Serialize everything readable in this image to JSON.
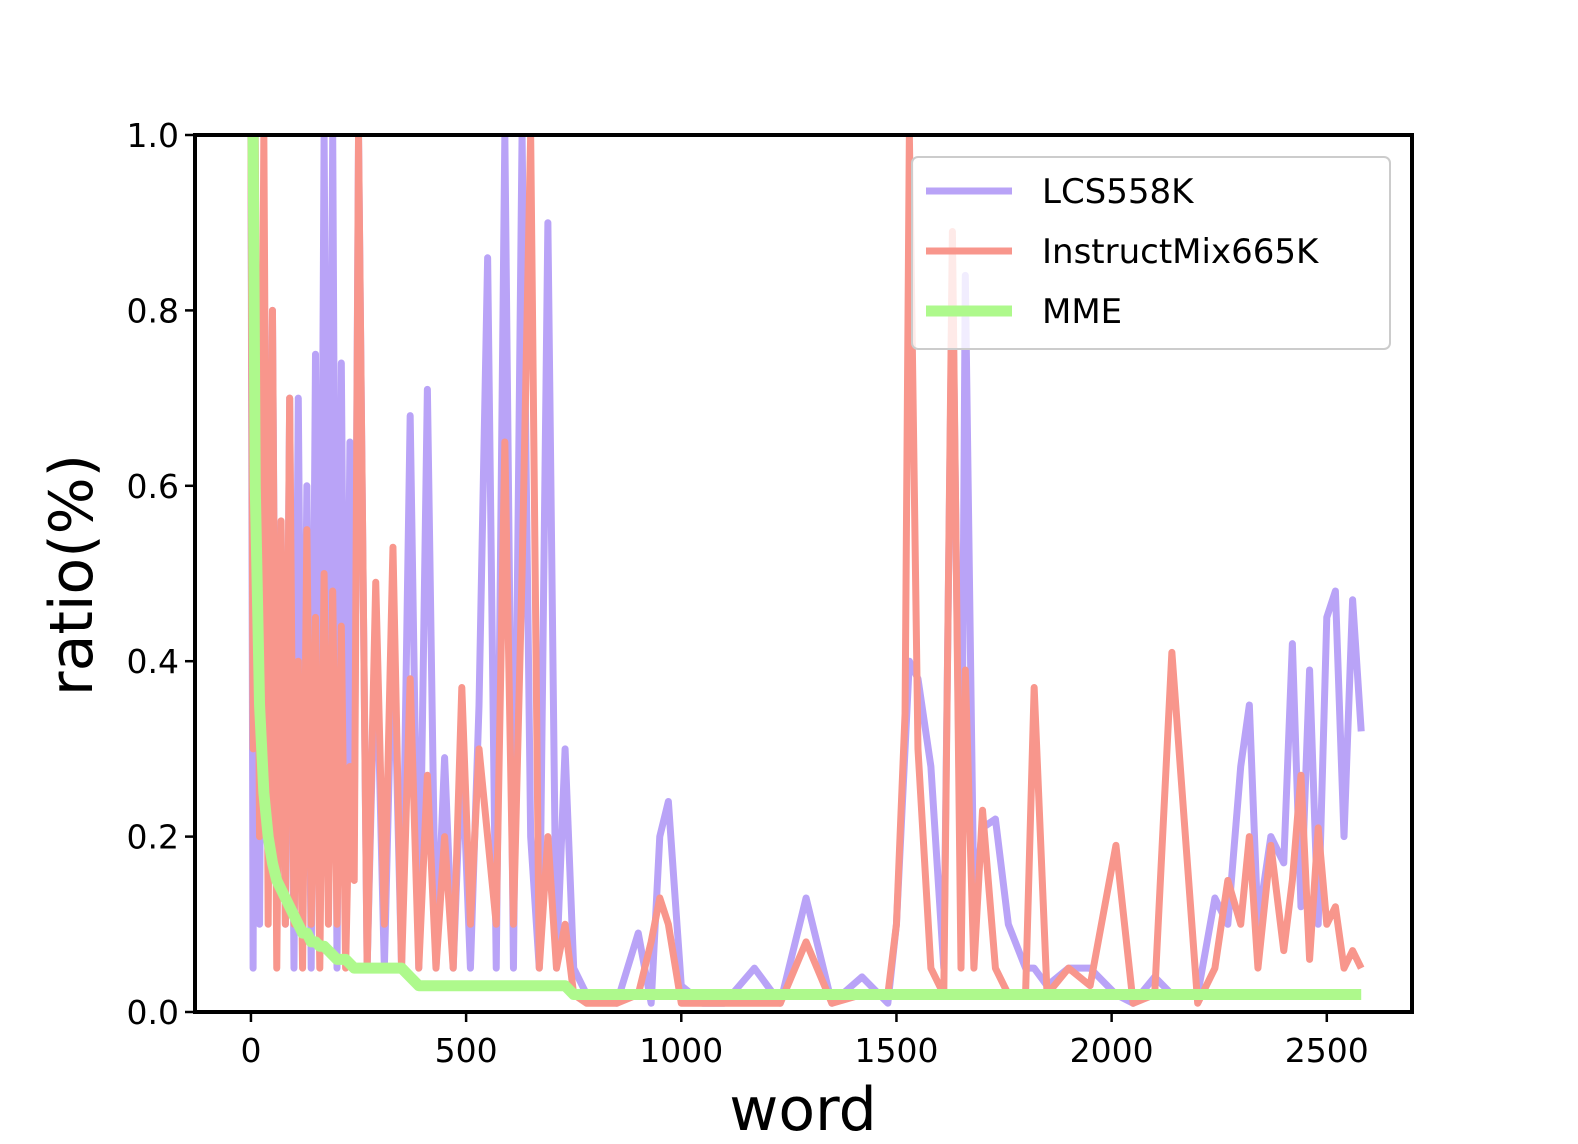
{
  "chart_data": {
    "type": "line",
    "xlabel": "word",
    "ylabel": "ratio(%)",
    "xlim": [
      -130,
      2698
    ],
    "ylim": [
      0,
      1
    ],
    "xticks": [
      0,
      500,
      1000,
      1500,
      2000,
      2500
    ],
    "yticks": [
      {
        "value": 0,
        "label": "0.0"
      },
      0.2,
      0.4,
      0.6,
      0.8,
      {
        "value": 1,
        "label": "1.0"
      }
    ],
    "legend": "upper right",
    "x": [
      0,
      5,
      10,
      20,
      30,
      40,
      50,
      60,
      70,
      80,
      90,
      100,
      110,
      120,
      130,
      140,
      150,
      160,
      170,
      180,
      190,
      200,
      210,
      220,
      230,
      240,
      250,
      270,
      290,
      310,
      330,
      350,
      370,
      390,
      410,
      430,
      450,
      470,
      490,
      510,
      530,
      550,
      570,
      590,
      610,
      630,
      650,
      670,
      690,
      710,
      730,
      750,
      780,
      810,
      850,
      900,
      930,
      950,
      970,
      1000,
      1050,
      1100,
      1170,
      1230,
      1290,
      1350,
      1420,
      1480,
      1500,
      1520,
      1530,
      1550,
      1580,
      1610,
      1630,
      1650,
      1660,
      1680,
      1700,
      1730,
      1760,
      1800,
      1820,
      1850,
      1900,
      1950,
      2010,
      2050,
      2100,
      2140,
      2200,
      2240,
      2270,
      2300,
      2320,
      2340,
      2370,
      2400,
      2420,
      2440,
      2460,
      2480,
      2500,
      2520,
      2540,
      2560,
      2580
    ],
    "series": [
      {
        "name": "LCS558K",
        "color": "#b9a3f7",
        "values": [
          1.0,
          0.05,
          0.9,
          0.1,
          0.9,
          0.2,
          0.8,
          0.1,
          0.55,
          0.1,
          0.7,
          0.05,
          0.7,
          0.1,
          0.6,
          0.05,
          0.75,
          0.1,
          1.0,
          0.2,
          1.0,
          0.05,
          0.74,
          0.1,
          0.65,
          0.2,
          1.0,
          0.05,
          0.45,
          0.05,
          0.45,
          0.05,
          0.68,
          0.05,
          0.71,
          0.05,
          0.29,
          0.05,
          0.3,
          0.05,
          0.35,
          0.86,
          0.05,
          1.0,
          0.05,
          1.0,
          0.2,
          0.05,
          0.9,
          0.05,
          0.3,
          0.05,
          0.02,
          0.02,
          0.01,
          0.09,
          0.01,
          0.2,
          0.24,
          0.03,
          0.01,
          0.01,
          0.05,
          0.01,
          0.13,
          0.01,
          0.04,
          0.01,
          0.1,
          0.3,
          0.4,
          0.38,
          0.28,
          0.05,
          0.86,
          0.1,
          0.84,
          0.12,
          0.21,
          0.22,
          0.1,
          0.05,
          0.05,
          0.03,
          0.05,
          0.05,
          0.02,
          0.01,
          0.04,
          0.02,
          0.02,
          0.13,
          0.1,
          0.28,
          0.35,
          0.1,
          0.2,
          0.17,
          0.42,
          0.12,
          0.39,
          0.1,
          0.45,
          0.48,
          0.2,
          0.47,
          0.32
        ]
      },
      {
        "name": "InstructMix665K",
        "color": "#f8968c",
        "values": [
          1.0,
          0.3,
          1.0,
          0.2,
          1.0,
          0.1,
          0.8,
          0.05,
          0.56,
          0.1,
          0.7,
          0.1,
          0.4,
          0.05,
          0.55,
          0.1,
          0.45,
          0.05,
          0.5,
          0.1,
          0.48,
          0.1,
          0.44,
          0.05,
          0.28,
          0.15,
          1.0,
          0.05,
          0.49,
          0.1,
          0.53,
          0.05,
          0.38,
          0.05,
          0.27,
          0.05,
          0.2,
          0.05,
          0.37,
          0.1,
          0.3,
          0.2,
          0.1,
          0.65,
          0.1,
          0.5,
          1.0,
          0.05,
          0.2,
          0.05,
          0.1,
          0.02,
          0.01,
          0.01,
          0.01,
          0.02,
          0.08,
          0.13,
          0.1,
          0.01,
          0.01,
          0.01,
          0.01,
          0.01,
          0.08,
          0.01,
          0.02,
          0.02,
          0.1,
          0.34,
          1.0,
          0.3,
          0.05,
          0.02,
          0.89,
          0.05,
          0.39,
          0.05,
          0.23,
          0.05,
          0.02,
          0.02,
          0.37,
          0.02,
          0.05,
          0.03,
          0.19,
          0.01,
          0.02,
          0.41,
          0.01,
          0.05,
          0.15,
          0.1,
          0.2,
          0.05,
          0.19,
          0.07,
          0.15,
          0.27,
          0.06,
          0.21,
          0.1,
          0.12,
          0.05,
          0.07,
          0.05
        ]
      },
      {
        "name": "MME",
        "color": "#aef98c",
        "values": [
          1.0,
          1.0,
          0.6,
          0.35,
          0.25,
          0.2,
          0.17,
          0.15,
          0.14,
          0.13,
          0.12,
          0.11,
          0.1,
          0.09,
          0.09,
          0.08,
          0.08,
          0.075,
          0.075,
          0.07,
          0.065,
          0.06,
          0.06,
          0.06,
          0.055,
          0.05,
          0.05,
          0.05,
          0.05,
          0.05,
          0.05,
          0.05,
          0.04,
          0.03,
          0.03,
          0.03,
          0.03,
          0.03,
          0.03,
          0.03,
          0.03,
          0.03,
          0.03,
          0.03,
          0.03,
          0.03,
          0.03,
          0.03,
          0.03,
          0.03,
          0.03,
          0.02,
          0.02,
          0.02,
          0.02,
          0.02,
          0.02,
          0.02,
          0.02,
          0.02,
          0.02,
          0.02,
          0.02,
          0.02,
          0.02,
          0.02,
          0.02,
          0.02,
          0.02,
          0.02,
          0.02,
          0.02,
          0.02,
          0.02,
          0.02,
          0.02,
          0.02,
          0.02,
          0.02,
          0.02,
          0.02,
          0.02,
          0.02,
          0.02,
          0.02,
          0.02,
          0.02,
          0.02,
          0.02,
          0.02,
          0.02,
          0.02,
          0.02,
          0.02,
          0.02,
          0.02,
          0.02,
          0.02,
          0.02,
          0.02,
          0.02,
          0.02,
          0.02,
          0.02,
          0.02,
          0.02,
          0.02
        ]
      }
    ]
  }
}
